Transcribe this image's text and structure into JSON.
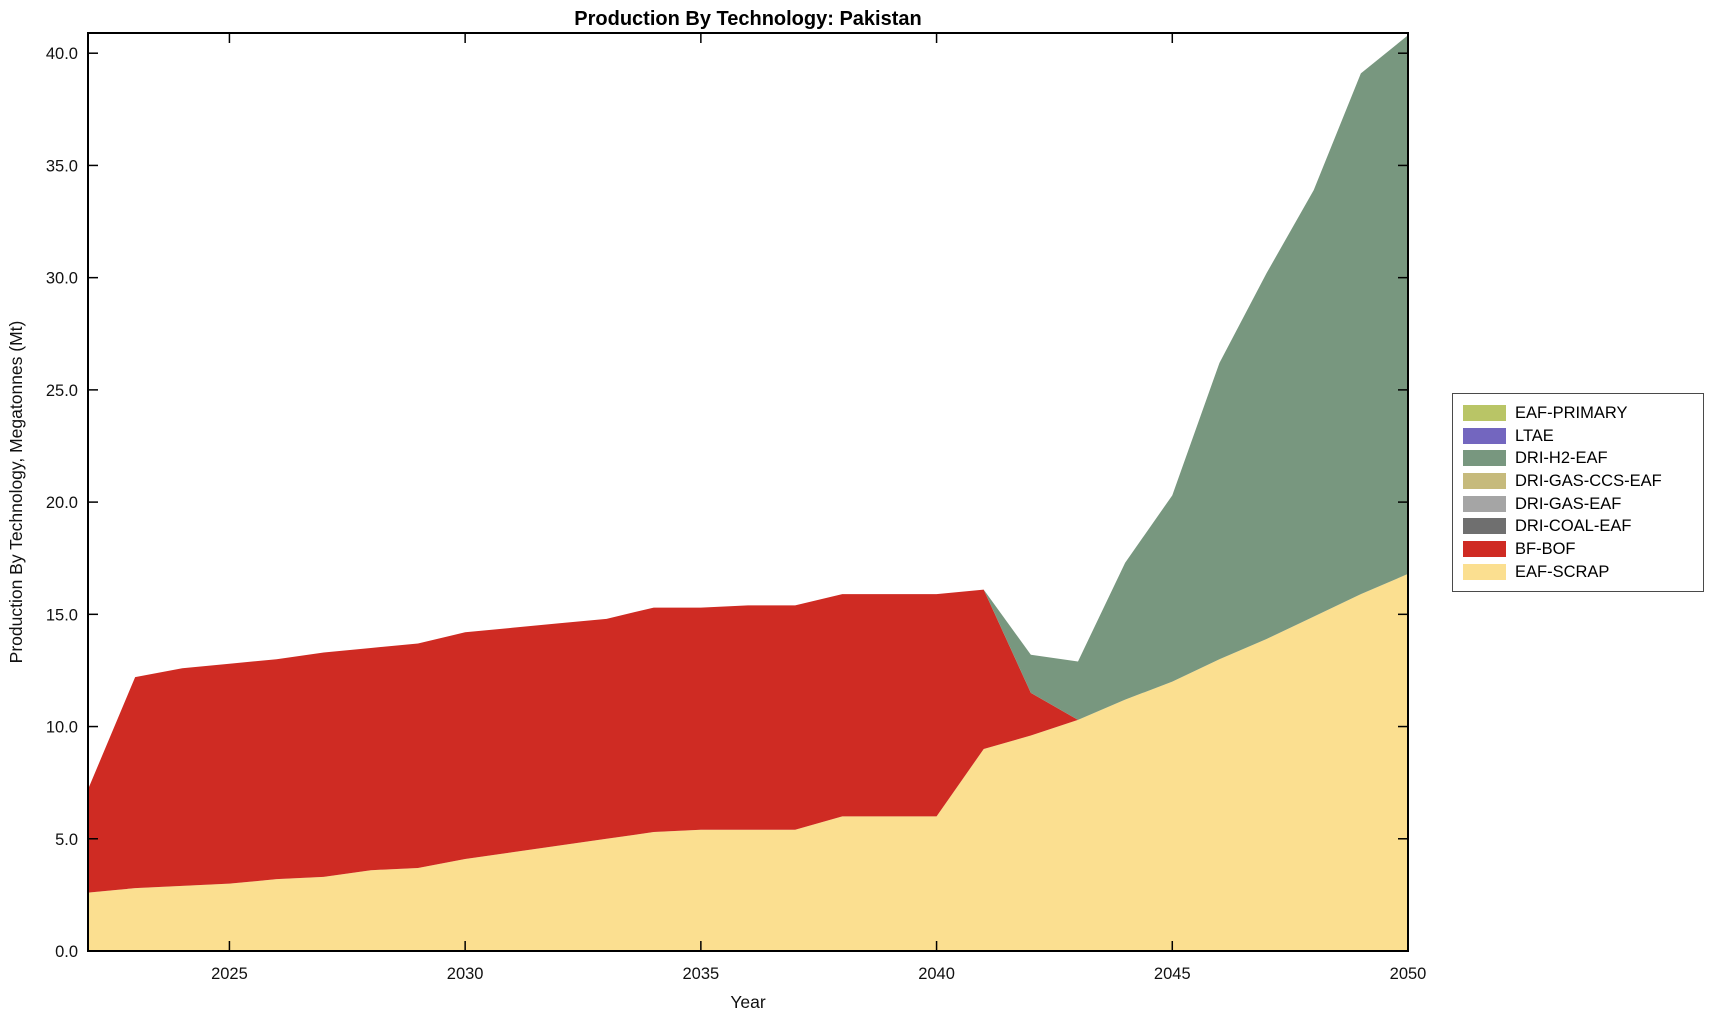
{
  "chart_data": {
    "type": "area",
    "stacked": true,
    "title": "Production By Technology: Pakistan",
    "xlabel": "Year",
    "ylabel": "Production By Technology, Megatonnes (Mt)",
    "grid": false,
    "x": [
      2022,
      2023,
      2024,
      2025,
      2026,
      2027,
      2028,
      2029,
      2030,
      2031,
      2032,
      2033,
      2034,
      2035,
      2036,
      2037,
      2038,
      2039,
      2040,
      2041,
      2042,
      2043,
      2044,
      2045,
      2046,
      2047,
      2048,
      2049,
      2050
    ],
    "xlim": [
      2022,
      2050
    ],
    "ylim": [
      0,
      40.9
    ],
    "xticks": {
      "values": [
        2025,
        2030,
        2035,
        2040,
        2045,
        2050
      ],
      "labels": [
        "2025",
        "2030",
        "2035",
        "2040",
        "2045",
        "2050"
      ]
    },
    "yticks": {
      "values": [
        0,
        5,
        10,
        15,
        20,
        25,
        30,
        35,
        40
      ],
      "labels": [
        "0.0",
        "5.0",
        "10.0",
        "15.0",
        "20.0",
        "25.0",
        "30.0",
        "35.0",
        "40.0"
      ]
    },
    "series": [
      {
        "name": "EAF-SCRAP",
        "color": "#FBDF90",
        "values": [
          2.6,
          2.8,
          2.9,
          3.0,
          3.2,
          3.3,
          3.6,
          3.7,
          4.1,
          4.4,
          4.7,
          5.0,
          5.3,
          5.4,
          5.4,
          5.4,
          6.0,
          6.0,
          6.0,
          9.0,
          9.6,
          10.3,
          11.2,
          12.0,
          13.0,
          13.9,
          14.9,
          15.9,
          16.8
        ]
      },
      {
        "name": "BF-BOF",
        "color": "#CF2B23",
        "values": [
          4.6,
          9.4,
          9.7,
          9.8,
          9.8,
          10.0,
          9.9,
          10.0,
          10.1,
          10.0,
          9.9,
          9.8,
          10.0,
          9.9,
          10.0,
          10.0,
          9.9,
          9.9,
          9.9,
          7.1,
          1.9,
          0,
          0,
          0,
          0,
          0,
          0,
          0,
          0
        ]
      },
      {
        "name": "DRI-COAL-EAF",
        "color": "#6F6F6F",
        "values": [
          0,
          0,
          0,
          0,
          0,
          0,
          0,
          0,
          0,
          0,
          0,
          0,
          0,
          0,
          0,
          0,
          0,
          0,
          0,
          0,
          0,
          0,
          0,
          0,
          0,
          0,
          0,
          0,
          0
        ]
      },
      {
        "name": "DRI-GAS-EAF",
        "color": "#A5A5A5",
        "values": [
          0,
          0,
          0,
          0,
          0,
          0,
          0,
          0,
          0,
          0,
          0,
          0,
          0,
          0,
          0,
          0,
          0,
          0,
          0,
          0,
          0,
          0,
          0,
          0,
          0,
          0,
          0,
          0,
          0
        ]
      },
      {
        "name": "DRI-GAS-CCS-EAF",
        "color": "#C6BA7C",
        "values": [
          0,
          0,
          0,
          0,
          0,
          0,
          0,
          0,
          0,
          0,
          0,
          0,
          0,
          0,
          0,
          0,
          0,
          0,
          0,
          0,
          0,
          0,
          0,
          0,
          0,
          0,
          0,
          0,
          0
        ]
      },
      {
        "name": "DRI-H2-EAF",
        "color": "#78977F",
        "values": [
          0,
          0,
          0,
          0,
          0,
          0,
          0,
          0,
          0,
          0,
          0,
          0,
          0,
          0,
          0,
          0,
          0,
          0,
          0,
          0,
          1.7,
          2.6,
          6.1,
          8.3,
          13.2,
          16.3,
          19.0,
          23.2,
          24.0
        ]
      },
      {
        "name": "LTAE",
        "color": "#7366BF",
        "values": [
          0,
          0,
          0,
          0,
          0,
          0,
          0,
          0,
          0,
          0,
          0,
          0,
          0,
          0,
          0,
          0,
          0,
          0,
          0,
          0,
          0,
          0,
          0,
          0,
          0,
          0,
          0,
          0,
          0
        ]
      },
      {
        "name": "EAF-PRIMARY",
        "color": "#B9C566",
        "values": [
          0,
          0,
          0,
          0,
          0,
          0,
          0,
          0,
          0,
          0,
          0,
          0,
          0,
          0,
          0,
          0,
          0,
          0,
          0,
          0,
          0,
          0,
          0,
          0,
          0,
          0,
          0,
          0,
          0
        ]
      }
    ],
    "legend": {
      "position": "right-outside",
      "entries": [
        "EAF-PRIMARY",
        "LTAE",
        "DRI-H2-EAF",
        "DRI-GAS-CCS-EAF",
        "DRI-GAS-EAF",
        "DRI-COAL-EAF",
        "BF-BOF",
        "EAF-SCRAP"
      ]
    }
  }
}
